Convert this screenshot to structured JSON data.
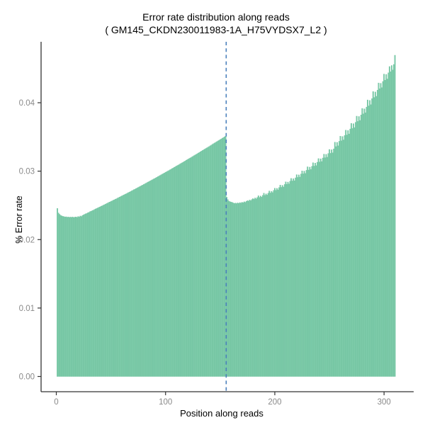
{
  "chart_data": {
    "type": "bar",
    "title": "Error rate distribution along reads",
    "subtitle": "( GM145_CKDN230011983-1A_H75VYDSX7_L2 )",
    "xlabel": "Position along reads",
    "ylabel": "% Error rate",
    "grid": false,
    "legend": false,
    "x_ticks": [
      0,
      100,
      200,
      300
    ],
    "x_tick_labels": [
      "0",
      "100",
      "200",
      "300"
    ],
    "y_ticks": [
      0,
      0.01,
      0.02,
      0.03,
      0.04
    ],
    "y_tick_labels": [
      "0.00",
      "0.01",
      "0.02",
      "0.03",
      "0.04"
    ],
    "xlim": [
      -15,
      326
    ],
    "ylim": [
      -0.0023,
      0.0489
    ],
    "bar_color": "#7ecbaa",
    "bar_edge_color": "#6cc09c",
    "axis_color": "#333333",
    "tick_label_color": "#8a8a8a",
    "vline": {
      "x": 155.5,
      "color": "#4a80bc",
      "style": "dashed"
    },
    "positions_start": 1,
    "values": [
      0.02455,
      0.0239,
      0.0237,
      0.02355,
      0.02346,
      0.0234,
      0.02336,
      0.0233,
      0.02334,
      0.02326,
      0.02332,
      0.02324,
      0.0233,
      0.02325,
      0.02331,
      0.02323,
      0.02329,
      0.02331,
      0.02325,
      0.02338,
      0.0233,
      0.02345,
      0.02338,
      0.02354,
      0.02361,
      0.0237,
      0.02378,
      0.02382,
      0.02394,
      0.02399,
      0.02411,
      0.02414,
      0.02426,
      0.02429,
      0.02441,
      0.02448,
      0.02456,
      0.02463,
      0.02472,
      0.02478,
      0.02488,
      0.02494,
      0.02503,
      0.0251,
      0.02517,
      0.02527,
      0.02533,
      0.02543,
      0.02549,
      0.02558,
      0.02565,
      0.02574,
      0.02581,
      0.0259,
      0.02597,
      0.02606,
      0.02614,
      0.02621,
      0.0263,
      0.02638,
      0.02646,
      0.02654,
      0.02662,
      0.0267,
      0.02679,
      0.02687,
      0.02695,
      0.02703,
      0.02712,
      0.02721,
      0.02729,
      0.02737,
      0.02746,
      0.02754,
      0.02763,
      0.02772,
      0.0278,
      0.02789,
      0.02797,
      0.02806,
      0.02815,
      0.02823,
      0.02832,
      0.02841,
      0.02849,
      0.02858,
      0.02867,
      0.02876,
      0.02885,
      0.02893,
      0.02902,
      0.02911,
      0.0292,
      0.02929,
      0.02938,
      0.02947,
      0.02956,
      0.02965,
      0.02974,
      0.02983,
      0.02992,
      0.03001,
      0.0301,
      0.03019,
      0.03028,
      0.03038,
      0.03047,
      0.03056,
      0.03065,
      0.03075,
      0.03084,
      0.03093,
      0.03103,
      0.03112,
      0.03121,
      0.03131,
      0.0314,
      0.0315,
      0.03159,
      0.03169,
      0.03178,
      0.03188,
      0.03197,
      0.03207,
      0.03216,
      0.03226,
      0.03236,
      0.03245,
      0.03255,
      0.03265,
      0.03274,
      0.03284,
      0.03294,
      0.03304,
      0.03313,
      0.03323,
      0.03333,
      0.03343,
      0.03352,
      0.03362,
      0.03372,
      0.03382,
      0.03392,
      0.03402,
      0.03412,
      0.03422,
      0.03432,
      0.03442,
      0.03452,
      0.03462,
      0.03472,
      0.03482,
      0.03492,
      0.03502,
      0.03512,
      0.0262,
      0.02585,
      0.02562,
      0.02555,
      0.02548,
      0.02544,
      0.02536,
      0.02529,
      0.02535,
      0.02526,
      0.02537,
      0.02529,
      0.02541,
      0.02534,
      0.02546,
      0.02539,
      0.02553,
      0.02545,
      0.02559,
      0.02571,
      0.02562,
      0.02579,
      0.02568,
      0.02586,
      0.02599,
      0.02589,
      0.02609,
      0.02595,
      0.02616,
      0.02641,
      0.02617,
      0.02636,
      0.02621,
      0.02646,
      0.02679,
      0.02647,
      0.02669,
      0.02651,
      0.02679,
      0.02711,
      0.02681,
      0.02706,
      0.02687,
      0.02719,
      0.02751,
      0.02721,
      0.02749,
      0.02727,
      0.02761,
      0.02797,
      0.02764,
      0.02793,
      0.02769,
      0.02806,
      0.02844,
      0.02809,
      0.02841,
      0.02814,
      0.02853,
      0.02894,
      0.02857,
      0.02891,
      0.02861,
      0.02903,
      0.02949,
      0.02909,
      0.02946,
      0.02914,
      0.02959,
      0.03004,
      0.02961,
      0.03001,
      0.02967,
      0.03013,
      0.03064,
      0.03017,
      0.03059,
      0.03024,
      0.03071,
      0.03124,
      0.03074,
      0.03119,
      0.03081,
      0.03131,
      0.03184,
      0.03134,
      0.03181,
      0.03141,
      0.03193,
      0.03249,
      0.03197,
      0.03246,
      0.03204,
      0.03259,
      0.03317,
      0.03261,
      0.03313,
      0.03269,
      0.03326,
      0.03424,
      0.03359,
      0.03421,
      0.03371,
      0.03437,
      0.03511,
      0.03444,
      0.03507,
      0.03457,
      0.03521,
      0.03599,
      0.03529,
      0.03594,
      0.03544,
      0.03617,
      0.03699,
      0.03624,
      0.03694,
      0.03637,
      0.03714,
      0.03804,
      0.03727,
      0.03799,
      0.03741,
      0.03821,
      0.03917,
      0.03837,
      0.03911,
      0.03854,
      0.03937,
      0.04041,
      0.03954,
      0.04034,
      0.03971,
      0.04061,
      0.04164,
      0.04077,
      0.04157,
      0.04094,
      0.04184,
      0.04289,
      0.04204,
      0.04284,
      0.04221,
      0.04311,
      0.04419,
      0.04329,
      0.04414,
      0.04347,
      0.04437,
      0.04529,
      0.04454,
      0.04544,
      0.04479,
      0.04559,
      0.04694
    ]
  }
}
